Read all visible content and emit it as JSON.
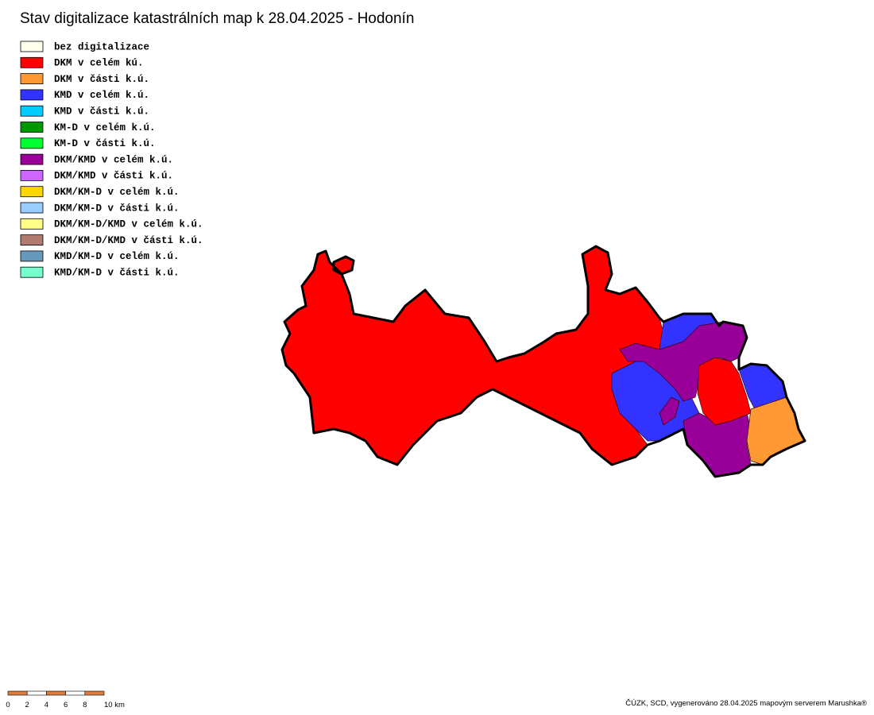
{
  "title": "Stav digitalizace katastrálních map k 28.04.2025 - Hodonín",
  "legend": [
    {
      "label": "bez digitalizace",
      "color": "#ffffee"
    },
    {
      "label": "DKM v celém kú.",
      "color": "#ff0000"
    },
    {
      "label": "DKM v části k.ú.",
      "color": "#ff9933"
    },
    {
      "label": "KMD v celém k.ú.",
      "color": "#3333ff"
    },
    {
      "label": "KMD v části k.ú.",
      "color": "#00ccff"
    },
    {
      "label": "KM-D v celém k.ú.",
      "color": "#009900"
    },
    {
      "label": "KM-D v části k.ú.",
      "color": "#00ff33"
    },
    {
      "label": "DKM/KMD v celém k.ú.",
      "color": "#990099"
    },
    {
      "label": "DKM/KMD v části k.ú.",
      "color": "#cc66ff"
    },
    {
      "label": "DKM/KM-D v celém k.ú.",
      "color": "#ffd700"
    },
    {
      "label": "DKM/KM-D v části k.ú.",
      "color": "#99ccff"
    },
    {
      "label": "DKM/KM-D/KMD v celém k.ú.",
      "color": "#ffff88"
    },
    {
      "label": "DKM/KM-D/KMD v části k.ú.",
      "color": "#b07b70"
    },
    {
      "label": "KMD/KM-D v celém k.ú.",
      "color": "#6699bb"
    },
    {
      "label": "KMD/KM-D v části k.ú.",
      "color": "#77ffcc"
    }
  ],
  "scale_bar": {
    "labels": [
      "0",
      "2",
      "4",
      "6",
      "8",
      "10 km"
    ],
    "colors": [
      "#e07b39",
      "#ffffff"
    ]
  },
  "credit": "ČÚZK, SCD, vygenerováno 28.04.2025 mapovým serverem Marushka®"
}
